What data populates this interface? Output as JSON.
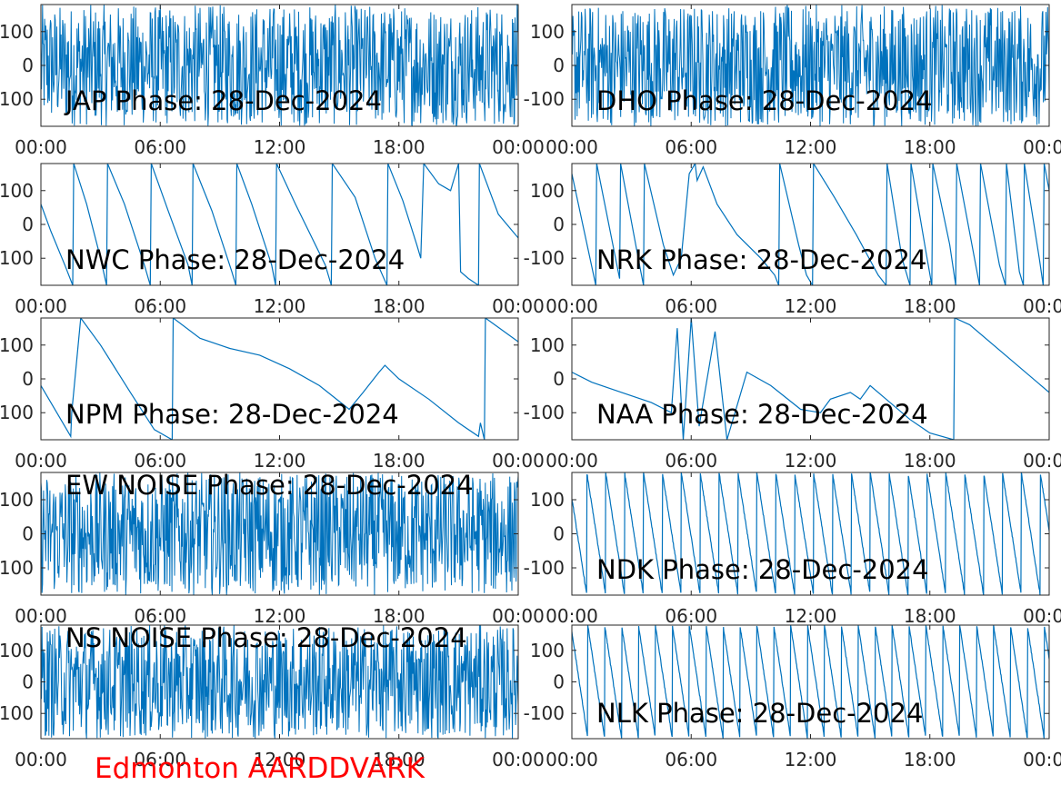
{
  "figure_title": "Edmonton AARDDVARK",
  "colors": {
    "line": "#0072BD",
    "axis": "#262626",
    "title_text": "#000000",
    "footer": "#ff0000"
  },
  "chart_data": [
    {
      "type": "line",
      "title": "JAP Phase: 28-Dec-2024",
      "xlabel": "",
      "ylabel": "",
      "x_ticks": [
        "00:00",
        "06:00",
        "12:00",
        "18:00",
        "00:00"
      ],
      "y_ticks": [
        "-100",
        "0",
        "100"
      ],
      "ylim": [
        -180,
        180
      ],
      "xlim_hours": [
        0,
        24
      ],
      "series": [
        {
          "points": []
        }
      ],
      "style": "noise",
      "wrap": true
    },
    {
      "type": "line",
      "title": "DHO Phase: 28-Dec-2024",
      "xlabel": "",
      "ylabel": "",
      "x_ticks": [
        "00:00",
        "06:00",
        "12:00",
        "18:00",
        "00:00"
      ],
      "y_ticks": [
        "-100",
        "0",
        "100"
      ],
      "ylim": [
        -180,
        180
      ],
      "xlim_hours": [
        0,
        24
      ],
      "series": [
        {
          "points": []
        }
      ],
      "style": "noise",
      "wrap": true
    },
    {
      "type": "line",
      "title": "NWC Phase: 28-Dec-2024",
      "xlabel": "",
      "ylabel": "",
      "x_ticks": [
        "00:00",
        "06:00",
        "12:00",
        "18:00",
        "00:00"
      ],
      "y_ticks": [
        "-100",
        "0",
        "100"
      ],
      "ylim": [
        -180,
        180
      ],
      "xlim_hours": [
        0,
        24
      ],
      "wrap": true,
      "series": [
        {
          "points": [
            [
              0,
              60
            ],
            [
              0.5,
              -20
            ],
            [
              1.2,
              -120
            ],
            [
              1.6,
              -180
            ],
            [
              1.65,
              180
            ],
            [
              2.3,
              60
            ],
            [
              3.0,
              -100
            ],
            [
              3.3,
              -180
            ],
            [
              3.35,
              180
            ],
            [
              4.2,
              60
            ],
            [
              5.2,
              -120
            ],
            [
              5.5,
              -180
            ],
            [
              5.55,
              180
            ],
            [
              6.4,
              40
            ],
            [
              7.4,
              -120
            ],
            [
              7.6,
              -180
            ],
            [
              7.65,
              180
            ],
            [
              8.6,
              40
            ],
            [
              9.6,
              -140
            ],
            [
              9.8,
              -180
            ],
            [
              9.85,
              180
            ],
            [
              10.6,
              60
            ],
            [
              11.6,
              -120
            ],
            [
              11.8,
              -180
            ],
            [
              11.85,
              180
            ],
            [
              12.8,
              60
            ],
            [
              14.3,
              -120
            ],
            [
              14.6,
              -180
            ],
            [
              14.65,
              180
            ],
            [
              15.8,
              80
            ],
            [
              16.8,
              -100
            ],
            [
              17.4,
              -180
            ],
            [
              17.45,
              180
            ],
            [
              18.2,
              70
            ],
            [
              18.9,
              -60
            ],
            [
              19.1,
              -100
            ],
            [
              19.25,
              180
            ],
            [
              20.0,
              120
            ],
            [
              20.6,
              100
            ],
            [
              21.0,
              180
            ],
            [
              21.1,
              -140
            ],
            [
              21.5,
              -160
            ],
            [
              22.0,
              -180
            ],
            [
              22.05,
              180
            ],
            [
              23.0,
              30
            ],
            [
              24,
              -40
            ]
          ]
        }
      ]
    },
    {
      "type": "line",
      "title": "NRK Phase: 28-Dec-2024",
      "xlabel": "",
      "ylabel": "",
      "x_ticks": [
        "00:00",
        "06:00",
        "12:00",
        "18:00",
        "00:00"
      ],
      "y_ticks": [
        "-100",
        "0",
        "100"
      ],
      "ylim": [
        -180,
        180
      ],
      "xlim_hours": [
        0,
        24
      ],
      "wrap": true,
      "series": [
        {
          "points": [
            [
              0,
              150
            ],
            [
              1.2,
              -180
            ],
            [
              1.25,
              180
            ],
            [
              2.4,
              -160
            ],
            [
              2.45,
              180
            ],
            [
              3.4,
              -120
            ],
            [
              3.6,
              -180
            ],
            [
              3.65,
              180
            ],
            [
              4.6,
              -60
            ],
            [
              5.1,
              -150
            ],
            [
              5.5,
              -100
            ],
            [
              5.9,
              150
            ],
            [
              6.2,
              180
            ],
            [
              6.3,
              130
            ],
            [
              6.6,
              170
            ],
            [
              7.3,
              60
            ],
            [
              8.3,
              -30
            ],
            [
              9.5,
              -100
            ],
            [
              10.2,
              -150
            ],
            [
              10.4,
              -180
            ],
            [
              10.45,
              180
            ],
            [
              11.4,
              -60
            ],
            [
              11.8,
              -150
            ],
            [
              12.1,
              -180
            ],
            [
              12.15,
              180
            ],
            [
              13.2,
              80
            ],
            [
              14.3,
              -30
            ],
            [
              15.4,
              -150
            ],
            [
              15.8,
              -180
            ],
            [
              15.85,
              180
            ],
            [
              16.6,
              -100
            ],
            [
              17.0,
              -180
            ],
            [
              17.05,
              180
            ],
            [
              17.8,
              -80
            ],
            [
              18.1,
              -180
            ],
            [
              18.15,
              180
            ],
            [
              19.0,
              -60
            ],
            [
              19.3,
              -180
            ],
            [
              19.35,
              180
            ],
            [
              20.4,
              -150
            ],
            [
              20.5,
              -180
            ],
            [
              20.55,
              180
            ],
            [
              21.5,
              -120
            ],
            [
              21.8,
              -180
            ],
            [
              21.85,
              180
            ],
            [
              22.5,
              -140
            ],
            [
              22.7,
              -180
            ],
            [
              22.75,
              180
            ],
            [
              23.5,
              -100
            ],
            [
              23.7,
              -180
            ],
            [
              23.75,
              180
            ],
            [
              24,
              100
            ]
          ]
        }
      ]
    },
    {
      "type": "line",
      "title": "NPM Phase: 28-Dec-2024",
      "xlabel": "",
      "ylabel": "",
      "x_ticks": [
        "00:00",
        "06:00",
        "12:00",
        "18:00",
        "00:00"
      ],
      "y_ticks": [
        "-100",
        "0",
        "100"
      ],
      "ylim": [
        -180,
        180
      ],
      "xlim_hours": [
        0,
        24
      ],
      "wrap": true,
      "series": [
        {
          "points": [
            [
              0,
              -20
            ],
            [
              1.0,
              -120
            ],
            [
              1.5,
              -170
            ],
            [
              1.55,
              -100
            ],
            [
              2.0,
              180
            ],
            [
              3.0,
              100
            ],
            [
              4.5,
              -40
            ],
            [
              5.7,
              -150
            ],
            [
              6.6,
              -180
            ],
            [
              6.65,
              180
            ],
            [
              8.0,
              120
            ],
            [
              9.5,
              90
            ],
            [
              11,
              70
            ],
            [
              12.5,
              30
            ],
            [
              14,
              -20
            ],
            [
              15.5,
              -90
            ],
            [
              16.2,
              -40
            ],
            [
              17.0,
              20
            ],
            [
              17.3,
              40
            ],
            [
              18.0,
              0
            ],
            [
              19.5,
              -60
            ],
            [
              21.0,
              -130
            ],
            [
              22.0,
              -170
            ],
            [
              22.1,
              -130
            ],
            [
              22.3,
              -180
            ],
            [
              22.35,
              180
            ],
            [
              24,
              110
            ]
          ]
        }
      ]
    },
    {
      "type": "line",
      "title": "NAA Phase: 28-Dec-2024",
      "xlabel": "",
      "ylabel": "",
      "x_ticks": [
        "00:00",
        "06:00",
        "12:00",
        "18:00",
        "00:00"
      ],
      "y_ticks": [
        "-100",
        "0",
        "100"
      ],
      "ylim": [
        -180,
        180
      ],
      "xlim_hours": [
        0,
        24
      ],
      "wrap": true,
      "series": [
        {
          "points": [
            [
              0,
              20
            ],
            [
              1.0,
              -10
            ],
            [
              2.5,
              -40
            ],
            [
              4.0,
              -70
            ],
            [
              5.0,
              -100
            ],
            [
              5.3,
              150
            ],
            [
              5.6,
              -180
            ],
            [
              6.0,
              180
            ],
            [
              6.4,
              -140
            ],
            [
              7.2,
              140
            ],
            [
              7.8,
              -180
            ],
            [
              8.4,
              -60
            ],
            [
              8.8,
              20
            ],
            [
              10.0,
              -20
            ],
            [
              11.5,
              -90
            ],
            [
              12.5,
              -100
            ],
            [
              13.0,
              -60
            ],
            [
              14.0,
              -40
            ],
            [
              14.5,
              -60
            ],
            [
              15.0,
              -20
            ],
            [
              15.8,
              -60
            ],
            [
              17.0,
              -120
            ],
            [
              18.0,
              -160
            ],
            [
              19.2,
              -180
            ],
            [
              19.25,
              180
            ],
            [
              20,
              160
            ],
            [
              22,
              60
            ],
            [
              24,
              -40
            ]
          ]
        }
      ]
    },
    {
      "type": "line",
      "title": "EW NOISE Phase: 28-Dec-2024",
      "xlabel": "",
      "ylabel": "",
      "x_ticks": [
        "00:00",
        "06:00",
        "12:00",
        "18:00",
        "00:00"
      ],
      "y_ticks": [
        "-100",
        "0",
        "100"
      ],
      "ylim": [
        -180,
        180
      ],
      "xlim_hours": [
        0,
        24
      ],
      "series": [
        {
          "points": []
        }
      ],
      "style": "noise",
      "wrap": true
    },
    {
      "type": "line",
      "title": "NDK Phase: 28-Dec-2024",
      "xlabel": "",
      "ylabel": "",
      "x_ticks": [
        "00:00",
        "06:00",
        "12:00",
        "18:00",
        "00:00"
      ],
      "y_ticks": [
        "-100",
        "0",
        "100"
      ],
      "ylim": [
        -180,
        180
      ],
      "xlim_hours": [
        0,
        24
      ],
      "series": [
        {
          "points": []
        }
      ],
      "style": "sawtooth",
      "period_hours": 0.95,
      "offset": 0.2,
      "wrap": true
    },
    {
      "type": "line",
      "title": "NS NOISE Phase: 28-Dec-2024",
      "xlabel": "",
      "ylabel": "",
      "x_ticks": [
        "00:00",
        "06:00",
        "12:00",
        "18:00",
        "00:00"
      ],
      "y_ticks": [
        "-100",
        "0",
        "100"
      ],
      "ylim": [
        -180,
        180
      ],
      "xlim_hours": [
        0,
        24
      ],
      "series": [
        {
          "points": []
        }
      ],
      "style": "noise",
      "wrap": true
    },
    {
      "type": "line",
      "title": "NLK Phase: 28-Dec-2024",
      "xlabel": "",
      "ylabel": "",
      "x_ticks": [
        "00:00",
        "06:00",
        "12:00",
        "18:00",
        "00:00"
      ],
      "y_ticks": [
        "-100",
        "0",
        "100"
      ],
      "ylim": [
        -180,
        180
      ],
      "xlim_hours": [
        0,
        24
      ],
      "series": [
        {
          "points": []
        }
      ],
      "style": "sawtooth",
      "period_hours": 0.85,
      "offset": 0.05,
      "wrap": true
    }
  ]
}
